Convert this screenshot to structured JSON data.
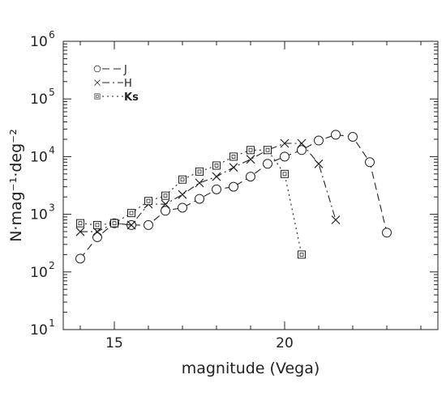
{
  "chart_data": {
    "type": "line",
    "xlabel": "magnitude (Vega)",
    "ylabel": "N·mag⁻¹·deg⁻²",
    "xlim": [
      13.5,
      24.5
    ],
    "ylim_log10": [
      1,
      6
    ],
    "yscale": "log",
    "x_ticks": [
      15,
      20
    ],
    "x_tick_labels": [
      "15",
      "20"
    ],
    "y_ticks": [
      1,
      2,
      3,
      4,
      5,
      6
    ],
    "y_tick_labels": [
      "10",
      "10",
      "10",
      "10",
      "10",
      "10"
    ],
    "y_tick_exponents": [
      "1",
      "2",
      "3",
      "4",
      "5",
      "6"
    ],
    "legend_position": "top-left",
    "series": [
      {
        "name": "J",
        "marker": "circle",
        "linestyle": "dashed",
        "x": [
          14.0,
          14.5,
          15.0,
          15.5,
          16.0,
          16.5,
          17.0,
          17.5,
          18.0,
          18.5,
          19.0,
          19.5,
          20.0,
          20.5,
          21.0,
          21.5,
          22.0,
          22.5,
          23.0
        ],
        "y": [
          170,
          400,
          700,
          650,
          650,
          1150,
          1300,
          1850,
          2700,
          3000,
          4500,
          7500,
          10000,
          13000,
          19000,
          24000,
          22000,
          8000,
          480
        ]
      },
      {
        "name": "H",
        "marker": "x",
        "linestyle": "dash-dot",
        "x": [
          14.0,
          14.5,
          15.0,
          15.5,
          16.0,
          16.5,
          17.0,
          17.5,
          18.0,
          18.5,
          19.0,
          19.5,
          20.0,
          20.5,
          21.0,
          21.5
        ],
        "y": [
          500,
          500,
          700,
          650,
          1500,
          1500,
          2200,
          3500,
          4500,
          6500,
          9000,
          13000,
          17000,
          17000,
          7500,
          800
        ]
      },
      {
        "name": "Ks",
        "marker": "square",
        "linestyle": "dotted",
        "x": [
          14.0,
          14.5,
          15.0,
          15.5,
          16.0,
          16.5,
          17.0,
          17.5,
          18.0,
          18.5,
          19.0,
          19.5,
          20.0,
          20.5
        ],
        "y": [
          700,
          650,
          700,
          1050,
          1700,
          2100,
          4000,
          5500,
          7000,
          10000,
          13000,
          13000,
          5000,
          200
        ]
      }
    ]
  }
}
